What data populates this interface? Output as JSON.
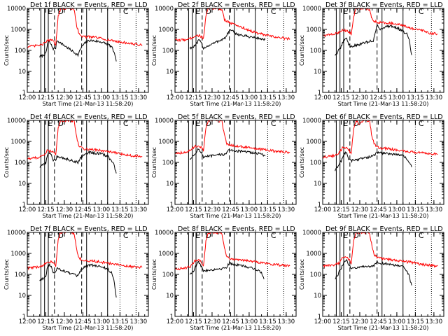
{
  "chart_data": [
    {
      "type": "line",
      "title": "Det 1f BLACK = Events, RED = LLD",
      "xlabel": "Start Time (21-Mar-13 11:58:20)",
      "ylabel": "Counts/sec",
      "y_scale": "log",
      "ylim": [
        1,
        10000
      ],
      "x_ticks": [
        "12:00",
        "12:15",
        "12:30",
        "12:45",
        "13:00",
        "13:15",
        "13:30"
      ],
      "y_ticks": [
        "1",
        "10",
        "100",
        "1000",
        "10000"
      ],
      "region_markers": [
        "E",
        "D",
        "C"
      ],
      "series": [
        {
          "color": "#000000",
          "x": [
            "12:10",
            "12:12",
            "12:15",
            "12:17",
            "12:19",
            "12:21",
            "12:23",
            "12:24",
            "12:41",
            "12:44",
            "12:47",
            "12:50",
            "12:55",
            "13:00",
            "13:05",
            "13:08",
            "13:10",
            "13:12"
          ],
          "values": [
            50,
            55,
            70,
            300,
            200,
            120,
            130,
            300,
            60,
            150,
            230,
            300,
            280,
            250,
            200,
            150,
            90,
            30
          ]
        },
        {
          "color": "#ff0000",
          "x": [
            "12:00",
            "12:05",
            "12:10",
            "12:13",
            "12:16",
            "12:20",
            "12:23",
            "12:25",
            "12:27",
            "12:33",
            "12:38",
            "12:40",
            "12:42",
            "12:45",
            "12:55",
            "13:05",
            "13:15",
            "13:20",
            "13:25",
            "13:33"
          ],
          "values": [
            150,
            160,
            175,
            200,
            300,
            300,
            200,
            4000,
            10000,
            10000,
            9000,
            1500,
            600,
            450,
            420,
            320,
            250,
            230,
            200,
            180
          ]
        }
      ]
    },
    {
      "type": "line",
      "title": "Det 2f BLACK = Events, RED = LLD",
      "xlabel": "Start Time (21-Mar-13 11:58:20)",
      "ylabel": "Counts/sec",
      "y_scale": "log",
      "ylim": [
        1,
        10000
      ],
      "x_ticks": [
        "12:00",
        "12:15",
        "12:30",
        "12:45",
        "13:00",
        "13:15",
        "13:30"
      ],
      "y_ticks": [
        "1",
        "10",
        "100",
        "1000",
        "10000"
      ],
      "region_markers": [
        "E",
        "D",
        "C"
      ],
      "series": [
        {
          "color": "#000000",
          "x": [
            "12:12",
            "12:15",
            "12:17",
            "12:19",
            "12:21",
            "12:23",
            "12:41",
            "12:44",
            "12:47",
            "12:50",
            "12:55",
            "13:00",
            "13:05",
            "13:10",
            "13:13"
          ],
          "values": [
            130,
            150,
            180,
            300,
            250,
            130,
            400,
            900,
            800,
            600,
            500,
            450,
            400,
            350,
            330
          ]
        },
        {
          "color": "#ff0000",
          "x": [
            "12:00",
            "12:05",
            "12:10",
            "12:13",
            "12:16",
            "12:20",
            "12:23",
            "12:25",
            "12:27",
            "12:33",
            "12:38",
            "12:40",
            "12:42",
            "12:45",
            "12:55",
            "13:05",
            "13:15",
            "13:20",
            "13:25",
            "13:33"
          ],
          "values": [
            300,
            310,
            340,
            380,
            500,
            500,
            380,
            4000,
            10000,
            10000,
            9000,
            3000,
            2500,
            2000,
            1200,
            700,
            500,
            450,
            400,
            350
          ]
        }
      ]
    },
    {
      "type": "line",
      "title": "Det 3f BLACK = Events, RED = LLD",
      "xlabel": "Start Time (21-Mar-13 11:58:20)",
      "ylabel": "Counts/sec",
      "y_scale": "log",
      "ylim": [
        1,
        10000
      ],
      "x_ticks": [
        "12:00",
        "12:15",
        "12:30",
        "12:45",
        "13:00",
        "13:15",
        "13:30"
      ],
      "y_ticks": [
        "1",
        "10",
        "100",
        "1000",
        "10000"
      ],
      "region_markers": [
        "E",
        "D",
        "C"
      ],
      "series": [
        {
          "color": "#000000",
          "x": [
            "12:10",
            "12:12",
            "12:15",
            "12:17",
            "12:19",
            "12:21",
            "12:23",
            "12:41",
            "12:44",
            "12:47",
            "12:50",
            "12:55",
            "13:00",
            "13:05",
            "13:08",
            "13:10",
            "13:12"
          ],
          "values": [
            60,
            80,
            150,
            300,
            400,
            200,
            150,
            300,
            1500,
            1000,
            1300,
            1500,
            1200,
            800,
            600,
            300,
            60
          ]
        },
        {
          "color": "#ff0000",
          "x": [
            "12:00",
            "12:05",
            "12:10",
            "12:13",
            "12:16",
            "12:20",
            "12:23",
            "12:25",
            "12:27",
            "12:33",
            "12:38",
            "12:40",
            "12:42",
            "12:45",
            "12:55",
            "13:05",
            "13:15",
            "13:20",
            "13:25",
            "13:33"
          ],
          "values": [
            500,
            550,
            600,
            700,
            1000,
            800,
            600,
            4000,
            10000,
            10000,
            9000,
            3000,
            2500,
            2200,
            2000,
            1500,
            1000,
            900,
            700,
            600
          ]
        }
      ]
    },
    {
      "type": "line",
      "title": "Det 4f BLACK = Events, RED = LLD",
      "xlabel": "Start Time (21-Mar-13 11:58:20)",
      "ylabel": "Counts/sec",
      "y_scale": "log",
      "ylim": [
        1,
        10000
      ],
      "x_ticks": [
        "12:00",
        "12:15",
        "12:30",
        "12:45",
        "13:00",
        "13:15",
        "13:30"
      ],
      "y_ticks": [
        "1",
        "10",
        "100",
        "1000",
        "10000"
      ],
      "region_markers": [
        "E",
        "D",
        "C"
      ],
      "series": [
        {
          "color": "#000000",
          "x": [
            "12:10",
            "12:12",
            "12:15",
            "12:17",
            "12:19",
            "12:21",
            "12:23",
            "12:24",
            "12:41",
            "12:44",
            "12:47",
            "12:50",
            "12:55",
            "13:00",
            "13:05",
            "13:08",
            "13:10",
            "13:12"
          ],
          "values": [
            60,
            70,
            100,
            300,
            250,
            130,
            120,
            200,
            100,
            200,
            250,
            300,
            280,
            250,
            200,
            120,
            80,
            30
          ]
        },
        {
          "color": "#ff0000",
          "x": [
            "12:00",
            "12:05",
            "12:10",
            "12:13",
            "12:16",
            "12:20",
            "12:23",
            "12:25",
            "12:27",
            "12:33",
            "12:38",
            "12:40",
            "12:42",
            "12:45",
            "12:55",
            "13:05",
            "13:15",
            "13:20",
            "13:25",
            "13:33"
          ],
          "values": [
            150,
            160,
            180,
            220,
            350,
            350,
            220,
            4000,
            10000,
            10000,
            9000,
            1500,
            600,
            450,
            400,
            330,
            260,
            230,
            210,
            190
          ]
        }
      ]
    },
    {
      "type": "line",
      "title": "Det 5f BLACK = Events, RED = LLD",
      "xlabel": "Start Time (21-Mar-13 11:58:20)",
      "ylabel": "Counts/sec",
      "y_scale": "log",
      "ylim": [
        1,
        10000
      ],
      "x_ticks": [
        "12:00",
        "12:15",
        "12:30",
        "12:45",
        "13:00",
        "13:15",
        "13:30"
      ],
      "y_ticks": [
        "1",
        "10",
        "100",
        "1000",
        "10000"
      ],
      "region_markers": [
        "E",
        "D",
        "C"
      ],
      "series": [
        {
          "color": "#000000",
          "x": [
            "12:12",
            "12:15",
            "12:17",
            "12:19",
            "12:21",
            "12:23",
            "12:41",
            "12:44",
            "12:47",
            "12:50",
            "12:55",
            "13:00",
            "13:05",
            "13:10",
            "13:13"
          ],
          "values": [
            150,
            200,
            300,
            450,
            300,
            180,
            250,
            400,
            380,
            350,
            330,
            300,
            280,
            250,
            200
          ]
        },
        {
          "color": "#ff0000",
          "x": [
            "12:00",
            "12:05",
            "12:10",
            "12:13",
            "12:16",
            "12:20",
            "12:23",
            "12:25",
            "12:27",
            "12:33",
            "12:38",
            "12:40",
            "12:42",
            "12:45",
            "12:55",
            "13:05",
            "13:15",
            "13:20",
            "13:25",
            "13:33"
          ],
          "values": [
            280,
            290,
            320,
            380,
            600,
            600,
            380,
            4000,
            10000,
            10000,
            9000,
            2000,
            800,
            650,
            550,
            450,
            380,
            350,
            320,
            300
          ]
        }
      ]
    },
    {
      "type": "line",
      "title": "Det 6f BLACK = Events, RED = LLD",
      "xlabel": "Start Time (21-Mar-13 11:58:20)",
      "ylabel": "Counts/sec",
      "y_scale": "log",
      "ylim": [
        1,
        10000
      ],
      "x_ticks": [
        "12:00",
        "12:15",
        "12:30",
        "12:45",
        "13:00",
        "13:15",
        "13:30"
      ],
      "y_ticks": [
        "1",
        "10",
        "100",
        "1000",
        "10000"
      ],
      "region_markers": [
        "E",
        "D",
        "C"
      ],
      "series": [
        {
          "color": "#000000",
          "x": [
            "12:10",
            "12:12",
            "12:15",
            "12:17",
            "12:19",
            "12:21",
            "12:23",
            "12:41",
            "12:44",
            "12:47",
            "12:50",
            "12:55",
            "13:00",
            "13:05",
            "13:08",
            "13:10",
            "13:12"
          ],
          "values": [
            40,
            60,
            120,
            250,
            300,
            150,
            120,
            200,
            300,
            280,
            270,
            260,
            240,
            200,
            150,
            100,
            60
          ]
        },
        {
          "color": "#ff0000",
          "x": [
            "12:00",
            "12:05",
            "12:10",
            "12:13",
            "12:16",
            "12:20",
            "12:23",
            "12:25",
            "12:27",
            "12:30",
            "12:33",
            "12:38",
            "12:40",
            "12:42",
            "12:45",
            "12:55",
            "13:05",
            "13:15",
            "13:20",
            "13:25",
            "13:33"
          ],
          "values": [
            180,
            190,
            210,
            260,
            500,
            500,
            260,
            4000,
            10000,
            6000,
            10000,
            9000,
            1500,
            700,
            500,
            430,
            350,
            300,
            280,
            260,
            240
          ]
        }
      ]
    },
    {
      "type": "line",
      "title": "Det 7f BLACK = Events, RED = LLD",
      "xlabel": "Start Time (21-Mar-13 11:58:20)",
      "ylabel": "Counts/sec",
      "y_scale": "log",
      "ylim": [
        1,
        10000
      ],
      "x_ticks": [
        "12:00",
        "12:15",
        "12:30",
        "12:45",
        "13:00",
        "13:15",
        "13:30"
      ],
      "y_ticks": [
        "1",
        "10",
        "100",
        "1000",
        "10000"
      ],
      "region_markers": [
        "E",
        "D",
        "C"
      ],
      "series": [
        {
          "color": "#000000",
          "x": [
            "12:10",
            "12:12",
            "12:15",
            "12:17",
            "12:19",
            "12:21",
            "12:23",
            "12:24",
            "12:41",
            "12:44",
            "12:47",
            "12:50",
            "12:55",
            "13:00",
            "13:05",
            "13:08",
            "13:10",
            "13:12"
          ],
          "values": [
            50,
            60,
            90,
            300,
            250,
            130,
            120,
            200,
            80,
            180,
            240,
            280,
            260,
            230,
            180,
            120,
            60,
            8
          ]
        },
        {
          "color": "#ff0000",
          "x": [
            "12:00",
            "12:05",
            "12:10",
            "12:13",
            "12:16",
            "12:20",
            "12:23",
            "12:25",
            "12:27",
            "12:33",
            "12:38",
            "12:40",
            "12:42",
            "12:45",
            "12:55",
            "13:05",
            "13:15",
            "13:20",
            "13:25",
            "13:33"
          ],
          "values": [
            200,
            210,
            230,
            260,
            400,
            400,
            260,
            4000,
            10000,
            10000,
            9000,
            1500,
            600,
            450,
            420,
            350,
            280,
            250,
            230,
            220
          ]
        }
      ]
    },
    {
      "type": "line",
      "title": "Det 8f BLACK = Events, RED = LLD",
      "xlabel": "Start Time (21-Mar-13 11:58:20)",
      "ylabel": "Counts/sec",
      "y_scale": "log",
      "ylim": [
        1,
        10000
      ],
      "x_ticks": [
        "12:00",
        "12:15",
        "12:30",
        "12:45",
        "13:00",
        "13:15",
        "13:30"
      ],
      "y_ticks": [
        "1",
        "10",
        "100",
        "1000",
        "10000"
      ],
      "region_markers": [
        "E",
        "D",
        "C"
      ],
      "series": [
        {
          "color": "#000000",
          "x": [
            "12:12",
            "12:15",
            "12:17",
            "12:19",
            "12:21",
            "12:23",
            "12:41",
            "12:44",
            "12:47",
            "12:50",
            "12:55",
            "13:00",
            "13:05",
            "13:10",
            "13:12"
          ],
          "values": [
            100,
            150,
            250,
            400,
            250,
            150,
            200,
            350,
            300,
            280,
            250,
            220,
            180,
            120,
            60
          ]
        },
        {
          "color": "#ff0000",
          "x": [
            "12:00",
            "12:05",
            "12:10",
            "12:13",
            "12:16",
            "12:20",
            "12:23",
            "12:25",
            "12:27",
            "12:33",
            "12:38",
            "12:40",
            "12:42",
            "12:45",
            "12:55",
            "13:05",
            "13:15",
            "13:20",
            "13:25",
            "13:33"
          ],
          "values": [
            180,
            190,
            210,
            250,
            450,
            450,
            250,
            4000,
            10000,
            10000,
            9000,
            1800,
            700,
            550,
            480,
            400,
            330,
            300,
            280,
            260
          ]
        }
      ]
    },
    {
      "type": "line",
      "title": "Det 9f BLACK = Events, RED = LLD",
      "xlabel": "Start Time (21-Mar-13 11:58:20)",
      "ylabel": "Counts/sec",
      "y_scale": "log",
      "ylim": [
        1,
        10000
      ],
      "x_ticks": [
        "12:00",
        "12:15",
        "12:30",
        "12:45",
        "13:00",
        "13:15",
        "13:30"
      ],
      "y_ticks": [
        "1",
        "10",
        "100",
        "1000",
        "10000"
      ],
      "region_markers": [
        "E",
        "D",
        "C"
      ],
      "series": [
        {
          "color": "#000000",
          "x": [
            "12:10",
            "12:12",
            "12:15",
            "12:17",
            "12:19",
            "12:21",
            "12:23",
            "12:41",
            "12:44",
            "12:47",
            "12:50",
            "12:55",
            "13:00",
            "13:05",
            "13:08",
            "13:10",
            "13:12"
          ],
          "values": [
            60,
            90,
            200,
            350,
            500,
            300,
            200,
            250,
            400,
            350,
            320,
            300,
            270,
            220,
            150,
            80,
            30
          ]
        },
        {
          "color": "#ff0000",
          "x": [
            "12:00",
            "12:05",
            "12:10",
            "12:13",
            "12:16",
            "12:20",
            "12:23",
            "12:25",
            "12:27",
            "12:33",
            "12:38",
            "12:40",
            "12:42",
            "12:45",
            "12:55",
            "13:05",
            "13:15",
            "13:20",
            "13:25",
            "13:33"
          ],
          "values": [
            250,
            260,
            290,
            340,
            700,
            700,
            340,
            4000,
            10000,
            10000,
            9000,
            2000,
            800,
            600,
            500,
            420,
            350,
            300,
            280,
            250
          ]
        }
      ]
    }
  ]
}
